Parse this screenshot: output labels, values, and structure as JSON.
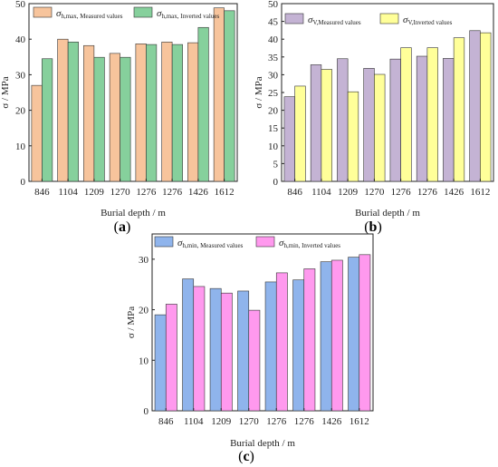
{
  "chart_data": [
    {
      "type": "bar",
      "panel_label": "(a)",
      "categories": [
        "846",
        "1104",
        "1209",
        "1270",
        "1276",
        "1276",
        "1426",
        "1612"
      ],
      "series": [
        {
          "name": "σh,max, Measured values",
          "legend_symbol": "σ",
          "legend_sub": "h,max, Measured values",
          "color": "#f7c49c",
          "values": [
            27,
            40,
            38.2,
            36,
            38.7,
            39.2,
            39,
            48.8
          ]
        },
        {
          "name": "σh,max, Inverted values",
          "legend_symbol": "σ",
          "legend_sub": "h,max, Inverted  values",
          "color": "#86d09c",
          "values": [
            34.5,
            39.2,
            34.9,
            34.9,
            38.5,
            38.5,
            43.3,
            48
          ]
        }
      ],
      "xlabel": "Burial depth / m",
      "ylabel": "σ / MPa",
      "ylim": [
        0,
        50
      ],
      "yticks": [
        "0",
        "10",
        "20",
        "30",
        "40",
        "50"
      ],
      "legend_position": "top"
    },
    {
      "type": "bar",
      "panel_label": "(b)",
      "categories": [
        "846",
        "1104",
        "1209",
        "1270",
        "1276",
        "1276",
        "1426",
        "1612"
      ],
      "series": [
        {
          "name": "σV,Measured values",
          "legend_symbol": "σ",
          "legend_sub": "V,Measured values",
          "color": "#c4b3d4",
          "values": [
            23.8,
            32.8,
            34.5,
            31.8,
            34.4,
            35.2,
            34.6,
            42.4
          ]
        },
        {
          "name": "σV,Inverted values",
          "legend_symbol": "σ",
          "legend_sub": "V,Inverted values",
          "color": "#ffff99",
          "values": [
            26.8,
            31.5,
            25.2,
            30.1,
            37.6,
            37.6,
            40.4,
            41.8
          ]
        }
      ],
      "xlabel": "Burial depth / m",
      "ylabel": "σ / MPa",
      "ylim": [
        0,
        50
      ],
      "yticks": [
        "0",
        "5",
        "10",
        "15",
        "20",
        "25",
        "30",
        "35",
        "40",
        "45",
        "50"
      ],
      "legend_position": "top"
    },
    {
      "type": "bar",
      "panel_label": "(c)",
      "categories": [
        "846",
        "1104",
        "1209",
        "1270",
        "1276",
        "1276",
        "1426",
        "1612"
      ],
      "series": [
        {
          "name": "σh,min, Measured values",
          "legend_symbol": "σ",
          "legend_sub": "h,min, Measured values",
          "color": "#8fb4ec",
          "values": [
            19,
            26.1,
            24.2,
            23.7,
            25.5,
            25.9,
            29.5,
            30.4
          ]
        },
        {
          "name": "σh,min, Inverted values",
          "legend_symbol": "σ",
          "legend_sub": "h,min, Inverted  values",
          "color": "#ff99ee",
          "values": [
            21.1,
            24.6,
            23.3,
            19.9,
            27.3,
            28.1,
            29.8,
            30.9
          ]
        }
      ],
      "xlabel": "Burial depth / m",
      "ylabel": "σ / MPa",
      "ylim": [
        0,
        35
      ],
      "yticks": [
        "0",
        "10",
        "20",
        "30"
      ],
      "legend_position": "top"
    }
  ]
}
